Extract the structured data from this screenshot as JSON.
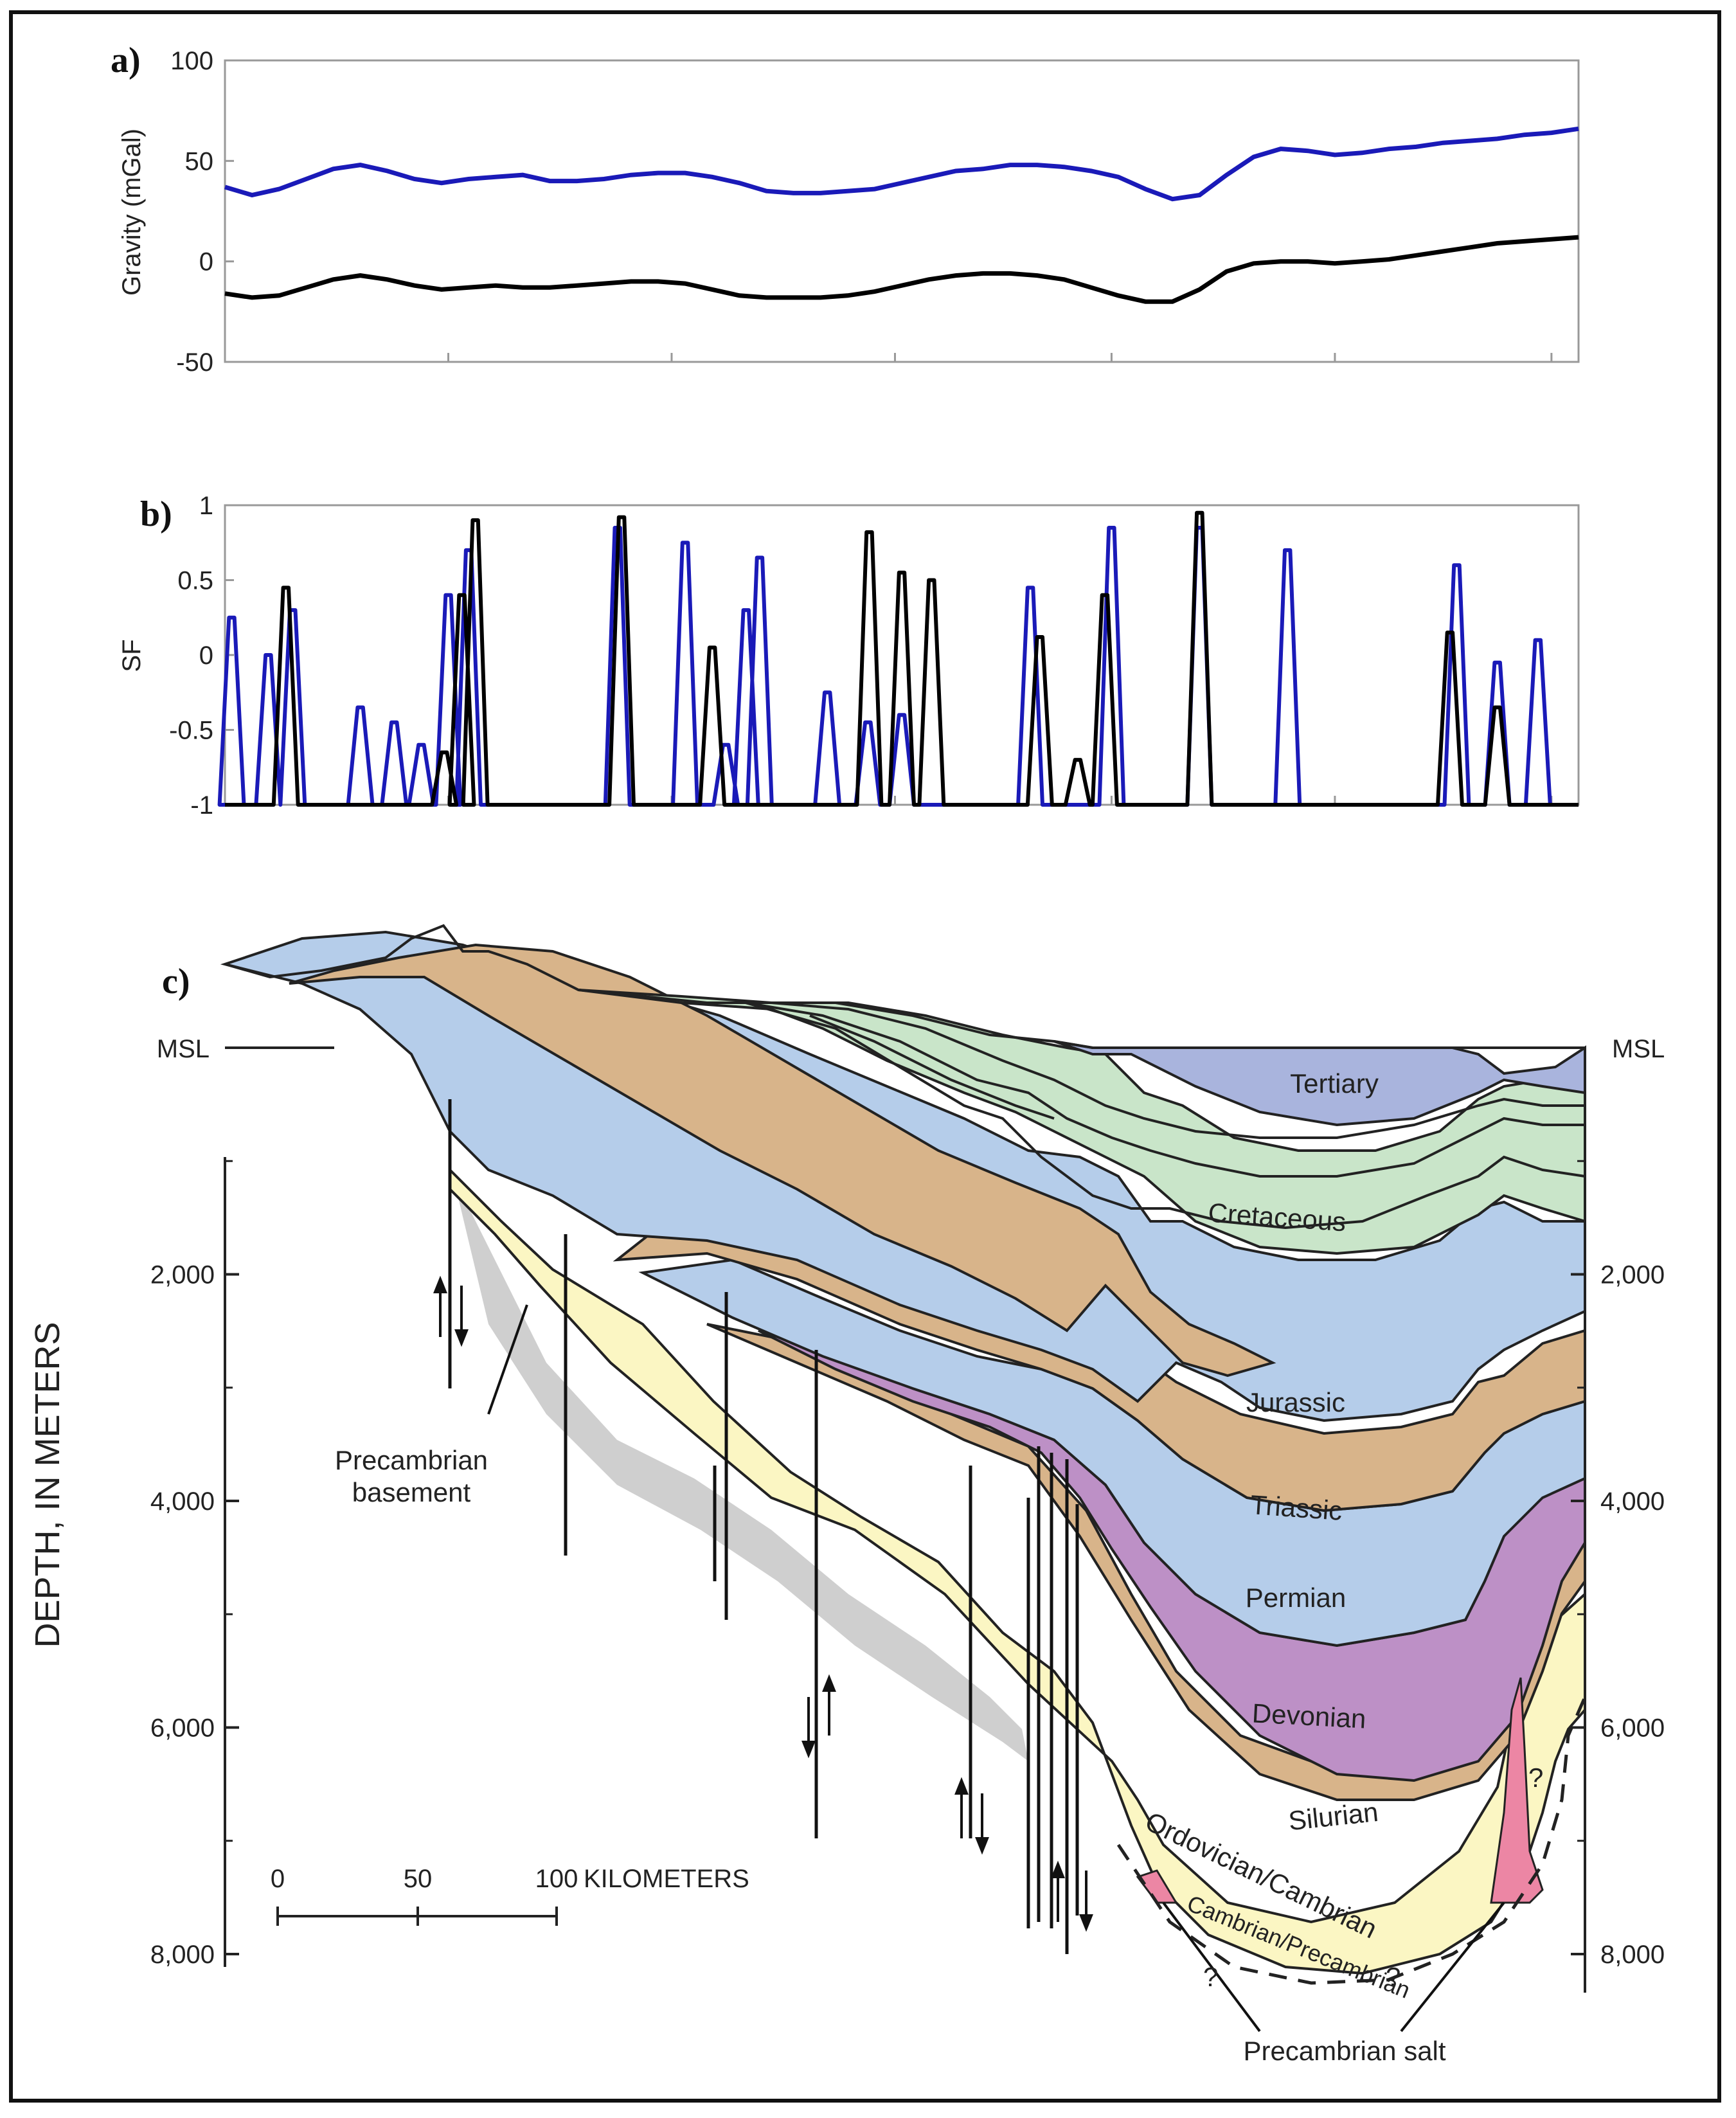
{
  "colors": {
    "blue_series": "#1a1ab8",
    "black_series": "#000000",
    "tertiary": "#a9b4dd",
    "cretaceous": "#c9e5c9",
    "jurassic": "#b5cdea",
    "triassic": "#d8b48a",
    "permian": "#b5cdea",
    "devonian": "#bd90c6",
    "silurian": "#d8b48a",
    "ordovician": "#fbf6c3",
    "salt": "#ec86a4",
    "basement_shadow": "#cfcfcf"
  },
  "chart_data": [
    {
      "panel": "a)",
      "type": "line",
      "ylabel": "Gravity (mGal)",
      "ylim": [
        -50,
        100
      ],
      "xlim": [
        0,
        100
      ],
      "yticks": [
        "100",
        "50",
        "0",
        "-50"
      ],
      "series": [
        {
          "name": "blue",
          "x": [
            0,
            2,
            4,
            6,
            8,
            10,
            12,
            14,
            16,
            18,
            20,
            22,
            24,
            26,
            28,
            30,
            32,
            34,
            36,
            38,
            40,
            42,
            44,
            46,
            48,
            50,
            52,
            54,
            56,
            58,
            60,
            62,
            64,
            66,
            68,
            70,
            72,
            74,
            76,
            78,
            80,
            82,
            84,
            86,
            88,
            90,
            92,
            94,
            96,
            98,
            100
          ],
          "values": [
            37,
            33,
            36,
            41,
            46,
            48,
            45,
            41,
            39,
            41,
            42,
            43,
            40,
            40,
            41,
            43,
            44,
            44,
            42,
            39,
            35,
            34,
            34,
            35,
            36,
            39,
            42,
            45,
            46,
            48,
            48,
            47,
            45,
            42,
            36,
            31,
            33,
            43,
            52,
            56,
            55,
            53,
            54,
            56,
            57,
            59,
            60,
            61,
            63,
            64,
            66
          ]
        },
        {
          "name": "black",
          "x": [
            0,
            2,
            4,
            6,
            8,
            10,
            12,
            14,
            16,
            18,
            20,
            22,
            24,
            26,
            28,
            30,
            32,
            34,
            36,
            38,
            40,
            42,
            44,
            46,
            48,
            50,
            52,
            54,
            56,
            58,
            60,
            62,
            64,
            66,
            68,
            70,
            72,
            74,
            76,
            78,
            80,
            82,
            84,
            86,
            88,
            90,
            92,
            94,
            96,
            98,
            100
          ],
          "values": [
            -16,
            -18,
            -17,
            -13,
            -9,
            -7,
            -9,
            -12,
            -14,
            -13,
            -12,
            -13,
            -13,
            -12,
            -11,
            -10,
            -10,
            -11,
            -14,
            -17,
            -18,
            -18,
            -18,
            -17,
            -15,
            -12,
            -9,
            -7,
            -6,
            -6,
            -7,
            -9,
            -13,
            -17,
            -20,
            -20,
            -14,
            -5,
            -1,
            0,
            0,
            -1,
            0,
            1,
            3,
            5,
            7,
            9,
            10,
            11,
            12
          ]
        }
      ]
    },
    {
      "panel": "b)",
      "type": "line",
      "ylabel": "SF",
      "ylim": [
        -1,
        1
      ],
      "xlim": [
        0,
        100
      ],
      "yticks": [
        "1",
        "0.5",
        "0",
        "-0.5",
        "-1"
      ],
      "series": [
        {
          "name": "blue",
          "peaks": [
            [
              0.5,
              0.25
            ],
            [
              3.2,
              0.0
            ],
            [
              5,
              0.3
            ],
            [
              10,
              -0.35
            ],
            [
              12.5,
              -0.45
            ],
            [
              14.5,
              -0.6
            ],
            [
              16.5,
              0.4
            ],
            [
              18,
              0.7
            ],
            [
              29,
              0.85
            ],
            [
              34,
              0.75
            ],
            [
              38.5,
              0.3
            ],
            [
              39.5,
              0.65
            ],
            [
              37,
              -0.6
            ],
            [
              44.5,
              -0.25
            ],
            [
              47.5,
              -0.45
            ],
            [
              50,
              -0.4
            ],
            [
              59.5,
              0.45
            ],
            [
              65.5,
              0.85
            ],
            [
              72,
              0.85
            ],
            [
              78.5,
              0.7
            ],
            [
              91,
              0.6
            ],
            [
              94,
              -0.05
            ],
            [
              97,
              0.1
            ]
          ]
        },
        {
          "name": "black",
          "peaks": [
            [
              4.5,
              0.45
            ],
            [
              16.2,
              -0.65
            ],
            [
              17.5,
              0.4
            ],
            [
              18.5,
              0.9
            ],
            [
              29.3,
              0.92
            ],
            [
              36,
              0.05
            ],
            [
              47.6,
              0.82
            ],
            [
              50,
              0.55
            ],
            [
              52.2,
              0.5
            ],
            [
              60.2,
              0.12
            ],
            [
              63,
              -0.7
            ],
            [
              65,
              0.4
            ],
            [
              72,
              0.95
            ],
            [
              90.5,
              0.15
            ],
            [
              94,
              -0.35
            ]
          ]
        }
      ]
    }
  ],
  "panel_a": {
    "label": "a)",
    "ylabel": "Gravity (mGal)",
    "yticks": [
      "100",
      "50",
      "0",
      "-50"
    ]
  },
  "panel_b": {
    "label": "b)",
    "ylabel": "SF",
    "yticks": [
      "1",
      "0.5",
      "0",
      "-0.5",
      "-1"
    ]
  },
  "panel_c": {
    "label": "c)",
    "y_axis_title": "DEPTH, IN METERS",
    "msl_left": "MSL",
    "msl_right": "MSL",
    "depth_ticks_left": [
      "2,000",
      "4,000",
      "6,000",
      "8,000"
    ],
    "depth_ticks_right": [
      "2,000",
      "4,000",
      "6,000",
      "8,000"
    ],
    "layers": [
      "Tertiary",
      "Cretaceous",
      "Jurassic",
      "Triassic",
      "Permian",
      "Devonian",
      "Silurian",
      "Ordovician/Cambrian",
      "Cambrian/Precambrian"
    ],
    "basement_label_line1": "Precambrian",
    "basement_label_line2": "basement",
    "salt_label": "Precambrian salt",
    "question_marks": [
      "?",
      "?",
      "?"
    ],
    "scale": {
      "ticks": [
        "0",
        "50",
        "100"
      ],
      "unit": "KILOMETERS"
    }
  }
}
